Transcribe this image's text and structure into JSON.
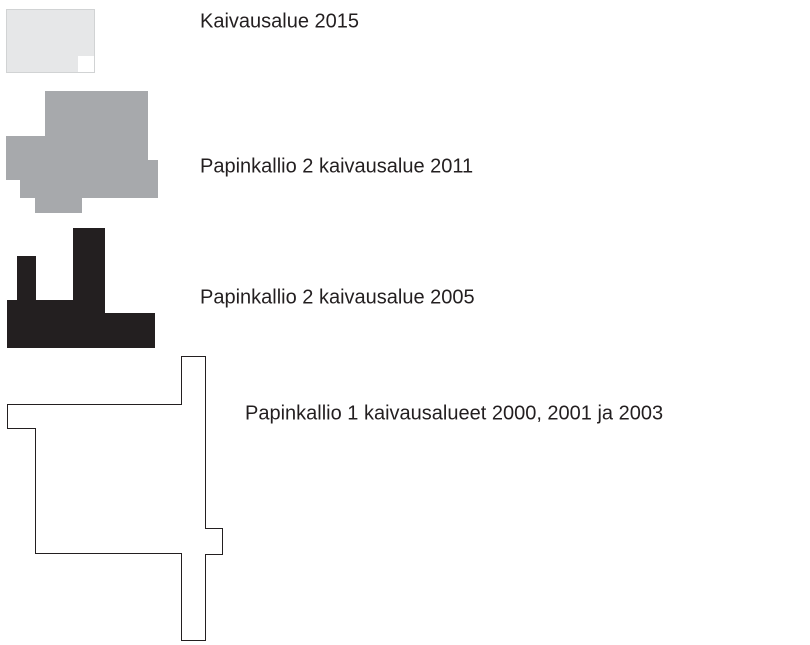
{
  "items": [
    {
      "label": "Kaivausalue 2015"
    },
    {
      "label": "Papinkallio 2 kaivausalue 2011"
    },
    {
      "label": "Papinkallio 2 kaivausalue 2005"
    },
    {
      "label": "Papinkallio 1 kaivausalueet 2000, 2001 ja 2003"
    }
  ]
}
